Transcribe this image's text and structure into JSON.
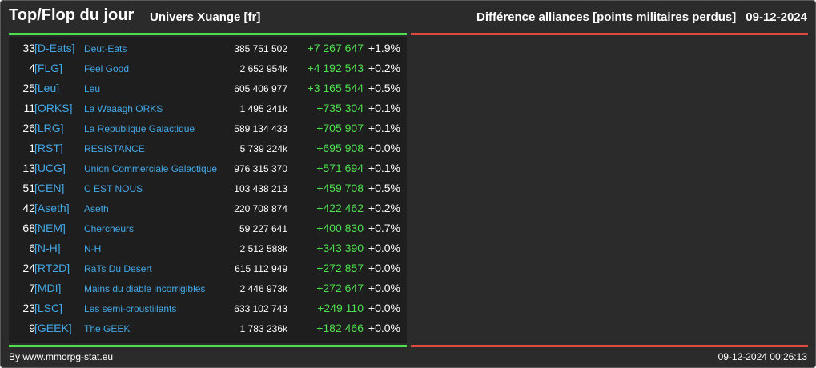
{
  "header": {
    "title": "Top/Flop du jour",
    "universe": "Univers Xuange [fr]",
    "subtitle": "Différence alliances [points militaires perdus]",
    "date": "09-12-2024"
  },
  "colors": {
    "background": "#2b2b2b",
    "panel_left": "#1e1e1e",
    "tag_link": "#43a8e6",
    "positive": "#4ee04e",
    "top_bar": "#4ee04e",
    "flop_bar": "#e04b3f"
  },
  "rows": [
    {
      "rank": "33",
      "tag": "[D-Eats]",
      "name": "Deut-Eats",
      "points": "385 751 502",
      "diff": "+7 267 647",
      "pct": "+1.9%"
    },
    {
      "rank": "4",
      "tag": "[FLG]",
      "name": "Feel Good",
      "points": "2 652 954k",
      "diff": "+4 192 543",
      "pct": "+0.2%"
    },
    {
      "rank": "25",
      "tag": "[Leu]",
      "name": "Leu",
      "points": "605 406 977",
      "diff": "+3 165 544",
      "pct": "+0.5%"
    },
    {
      "rank": "11",
      "tag": "[ORKS]",
      "name": "La Waaagh ORKS",
      "points": "1 495 241k",
      "diff": "+735 304",
      "pct": "+0.1%"
    },
    {
      "rank": "26",
      "tag": "[LRG]",
      "name": "La Republique Galactique",
      "points": "589 134 433",
      "diff": "+705 907",
      "pct": "+0.1%"
    },
    {
      "rank": "1",
      "tag": "[RST]",
      "name": "RESISTANCE",
      "points": "5 739 224k",
      "diff": "+695 908",
      "pct": "+0.0%"
    },
    {
      "rank": "13",
      "tag": "[UCG]",
      "name": "Union Commerciale Galactique",
      "points": "976 315 370",
      "diff": "+571 694",
      "pct": "+0.1%"
    },
    {
      "rank": "51",
      "tag": "[CEN]",
      "name": "C EST NOUS",
      "points": "103 438 213",
      "diff": "+459 708",
      "pct": "+0.5%"
    },
    {
      "rank": "42",
      "tag": "[Aseth]",
      "name": "Aseth",
      "points": "220 708 874",
      "diff": "+422 462",
      "pct": "+0.2%"
    },
    {
      "rank": "68",
      "tag": "[NEM]",
      "name": "Chercheurs",
      "points": "59 227 641",
      "diff": "+400 830",
      "pct": "+0.7%"
    },
    {
      "rank": "6",
      "tag": "[N-H]",
      "name": "N-H",
      "points": "2 512 588k",
      "diff": "+343 390",
      "pct": "+0.0%"
    },
    {
      "rank": "24",
      "tag": "[RT2D]",
      "name": "RaTs Du Desert",
      "points": "615 112 949",
      "diff": "+272 857",
      "pct": "+0.0%"
    },
    {
      "rank": "7",
      "tag": "[MDI]",
      "name": "Mains du diable incorrigibles",
      "points": "2 446 973k",
      "diff": "+272 647",
      "pct": "+0.0%"
    },
    {
      "rank": "23",
      "tag": "[LSC]",
      "name": "Les semi-croustillants",
      "points": "633 102 743",
      "diff": "+249 110",
      "pct": "+0.0%"
    },
    {
      "rank": "9",
      "tag": "[GEEK]",
      "name": "The GEEK",
      "points": "1 783 236k",
      "diff": "+182 466",
      "pct": "+0.0%"
    }
  ],
  "footer": {
    "credit": "By www.mmorpg-stat.eu",
    "timestamp": "09-12-2024 00:26:13"
  }
}
